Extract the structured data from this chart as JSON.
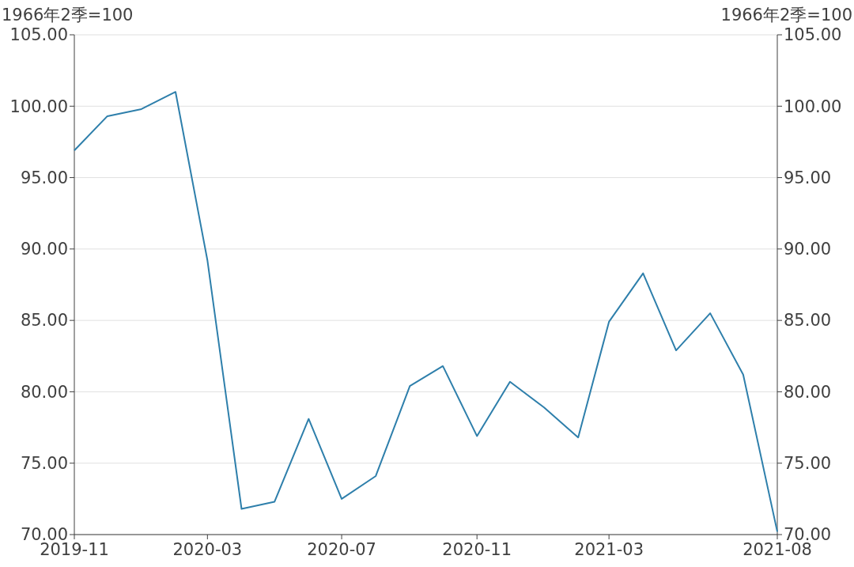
{
  "chart_data": {
    "type": "line",
    "ylabel": "1966年2季=100",
    "y2label": "1966年2季=100",
    "x": [
      "2019-11",
      "2019-12",
      "2020-01",
      "2020-02",
      "2020-03",
      "2020-04",
      "2020-05",
      "2020-06",
      "2020-07",
      "2020-08",
      "2020-09",
      "2020-10",
      "2020-11",
      "2020-12",
      "2021-01",
      "2021-02",
      "2021-03",
      "2021-04",
      "2021-05",
      "2021-06",
      "2021-07",
      "2021-08"
    ],
    "series": [
      {
        "color": "#2e7fab",
        "values": [
          96.9,
          99.3,
          99.8,
          101.0,
          89.2,
          71.8,
          72.3,
          78.1,
          72.5,
          74.1,
          80.4,
          81.8,
          76.9,
          80.7,
          78.9,
          76.8,
          84.9,
          88.3,
          82.9,
          85.5,
          81.2,
          70.2
        ]
      }
    ],
    "xlim": [
      "2019-11",
      "2021-08"
    ],
    "xticks": [
      "2019-11",
      "2020-03",
      "2020-07",
      "2020-11",
      "2021-03",
      "2021-08"
    ],
    "ylim": [
      70,
      105
    ],
    "yticks": [
      {
        "value": 70,
        "label": "70.00"
      },
      {
        "value": 75,
        "label": "75.00"
      },
      {
        "value": 80,
        "label": "80.00"
      },
      {
        "value": 85,
        "label": "85.00"
      },
      {
        "value": 90,
        "label": "90.00"
      },
      {
        "value": 95,
        "label": "95.00"
      },
      {
        "value": 100,
        "label": "100.00"
      },
      {
        "value": 105,
        "label": "105.00"
      }
    ],
    "y2lim": [
      70,
      105
    ],
    "y2ticks": [
      {
        "value": 70,
        "label": "70.00"
      },
      {
        "value": 75,
        "label": "75.00"
      },
      {
        "value": 80,
        "label": "80.00"
      },
      {
        "value": 85,
        "label": "85.00"
      },
      {
        "value": 90,
        "label": "90.00"
      },
      {
        "value": 95,
        "label": "95.00"
      },
      {
        "value": 100,
        "label": "100.00"
      },
      {
        "value": 105,
        "label": "105.00"
      }
    ],
    "grid": "y",
    "line_style": "solid"
  }
}
